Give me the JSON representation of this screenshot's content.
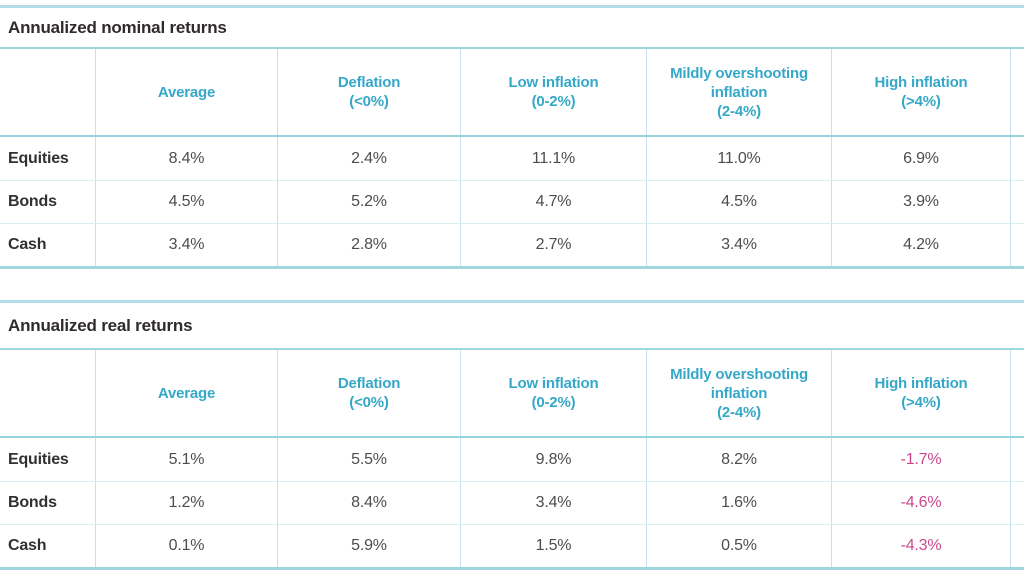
{
  "colors": {
    "accent_teal": "#35a8c8",
    "rule_teal": "#a0d6e0",
    "row_separator": "#d9eef3",
    "column_line": "#c3e4eb",
    "title_text": "#2f2b2a",
    "value_text": "#504c4d",
    "negative_value": "#c9488e"
  },
  "tables": [
    {
      "title": "Annualized nominal returns",
      "col_headers": [
        "Average",
        "Deflation\n(<0%)",
        "Low inflation\n(0-2%)",
        "Mildly overshooting\ninflation\n(2-4%)",
        "High inflation\n(>4%)"
      ],
      "rows": [
        {
          "label": "Equities",
          "values": [
            "8.4%",
            "2.4%",
            "11.1%",
            "11.0%",
            "6.9%"
          ]
        },
        {
          "label": "Bonds",
          "values": [
            "4.5%",
            "5.2%",
            "4.7%",
            "4.5%",
            "3.9%"
          ]
        },
        {
          "label": "Cash",
          "values": [
            "3.4%",
            "2.8%",
            "2.7%",
            "3.4%",
            "4.2%"
          ]
        }
      ]
    },
    {
      "title": "Annualized real returns",
      "col_headers": [
        "Average",
        "Deflation\n(<0%)",
        "Low inflation\n(0-2%)",
        "Mildly overshooting\ninflation\n(2-4%)",
        "High inflation\n(>4%)"
      ],
      "rows": [
        {
          "label": "Equities",
          "values": [
            "5.1%",
            "5.5%",
            "9.8%",
            "8.2%",
            "-1.7%"
          ]
        },
        {
          "label": "Bonds",
          "values": [
            "1.2%",
            "8.4%",
            "3.4%",
            "1.6%",
            "-4.6%"
          ]
        },
        {
          "label": "Cash",
          "values": [
            "0.1%",
            "5.9%",
            "1.5%",
            "0.5%",
            "-4.3%"
          ]
        }
      ]
    }
  ],
  "chart_data": [
    {
      "type": "table",
      "title": "Annualized nominal returns",
      "columns": [
        "",
        "Average",
        "Deflation (<0%)",
        "Low inflation (0-2%)",
        "Mildly overshooting inflation (2-4%)",
        "High inflation (>4%)"
      ],
      "unit": "%",
      "rows": [
        [
          "Equities",
          8.4,
          2.4,
          11.1,
          11.0,
          6.9
        ],
        [
          "Bonds",
          4.5,
          5.2,
          4.7,
          4.5,
          3.9
        ],
        [
          "Cash",
          3.4,
          2.8,
          2.7,
          3.4,
          4.2
        ]
      ]
    },
    {
      "type": "table",
      "title": "Annualized real returns",
      "columns": [
        "",
        "Average",
        "Deflation (<0%)",
        "Low inflation (0-2%)",
        "Mildly overshooting inflation (2-4%)",
        "High inflation (>4%)"
      ],
      "unit": "%",
      "negative_value_color": "#c9488e",
      "rows": [
        [
          "Equities",
          5.1,
          5.5,
          9.8,
          8.2,
          -1.7
        ],
        [
          "Bonds",
          1.2,
          8.4,
          3.4,
          1.6,
          -4.6
        ],
        [
          "Cash",
          0.1,
          5.9,
          1.5,
          0.5,
          -4.3
        ]
      ]
    }
  ]
}
